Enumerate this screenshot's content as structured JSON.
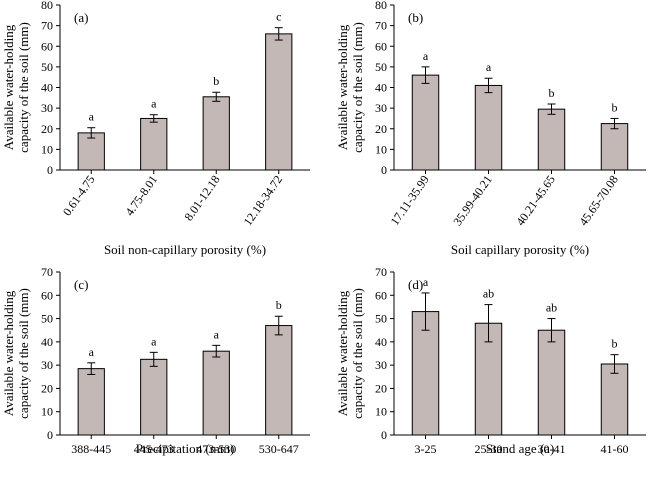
{
  "colors": {
    "bar_fill": "#c3b8b5",
    "axis": "#000000"
  },
  "chart_data": [
    {
      "type": "bar",
      "panel": "(a)",
      "xlabel": "Soil non-capillary porosity (%)",
      "ylabel": [
        "Available water-holding",
        "capacity of the soil (mm)"
      ],
      "ylim": [
        0,
        80
      ],
      "yticks": [
        0,
        10,
        20,
        30,
        40,
        50,
        60,
        70,
        80
      ],
      "categories": [
        "0.61-4.75",
        "4.75-8.01",
        "8.01-12.18",
        "12.18-34.72"
      ],
      "values": [
        18,
        25,
        35.5,
        66
      ],
      "errors": [
        2.5,
        1.8,
        2.2,
        3
      ],
      "significance": [
        "a",
        "a",
        "b",
        "c"
      ],
      "rotate_categories": true
    },
    {
      "type": "bar",
      "panel": "(b)",
      "xlabel": "Soil capillary porosity (%)",
      "ylabel": [
        "Available water-holding",
        "capacity of the soil (mm)"
      ],
      "ylim": [
        0,
        80
      ],
      "yticks": [
        0,
        10,
        20,
        30,
        40,
        50,
        60,
        70,
        80
      ],
      "categories": [
        "17.11-35.99",
        "35.99-40.21",
        "40.21-45.65",
        "45.65-70.08"
      ],
      "values": [
        46,
        41,
        29.5,
        22.5
      ],
      "errors": [
        4,
        3.5,
        2.5,
        2.5
      ],
      "significance": [
        "a",
        "a",
        "b",
        "b"
      ],
      "rotate_categories": true
    },
    {
      "type": "bar",
      "panel": "(c)",
      "xlabel": "Precipitation (mm)",
      "ylabel": [
        "Available water-holding",
        "capacity of the soil (mm)"
      ],
      "ylim": [
        0,
        70
      ],
      "yticks": [
        0,
        10,
        20,
        30,
        40,
        50,
        60,
        70
      ],
      "categories": [
        "388-445",
        "445-473",
        "473-530",
        "530-647"
      ],
      "values": [
        28.5,
        32.5,
        36,
        47
      ],
      "errors": [
        2.5,
        3,
        2.5,
        4
      ],
      "significance": [
        "a",
        "a",
        "a",
        "b"
      ],
      "rotate_categories": false
    },
    {
      "type": "bar",
      "panel": "(d)",
      "xlabel": "Stand age (a)",
      "ylabel": [
        "Available water-holding",
        "capacity of the soil (mm)"
      ],
      "ylim": [
        0,
        70
      ],
      "yticks": [
        0,
        10,
        20,
        30,
        40,
        50,
        60,
        70
      ],
      "categories": [
        "3-25",
        "25-30",
        "30-41",
        "41-60"
      ],
      "values": [
        53,
        48,
        45,
        30.5
      ],
      "errors": [
        8,
        8,
        5,
        4
      ],
      "significance": [
        "a",
        "ab",
        "ab",
        "b"
      ],
      "rotate_categories": false
    }
  ]
}
